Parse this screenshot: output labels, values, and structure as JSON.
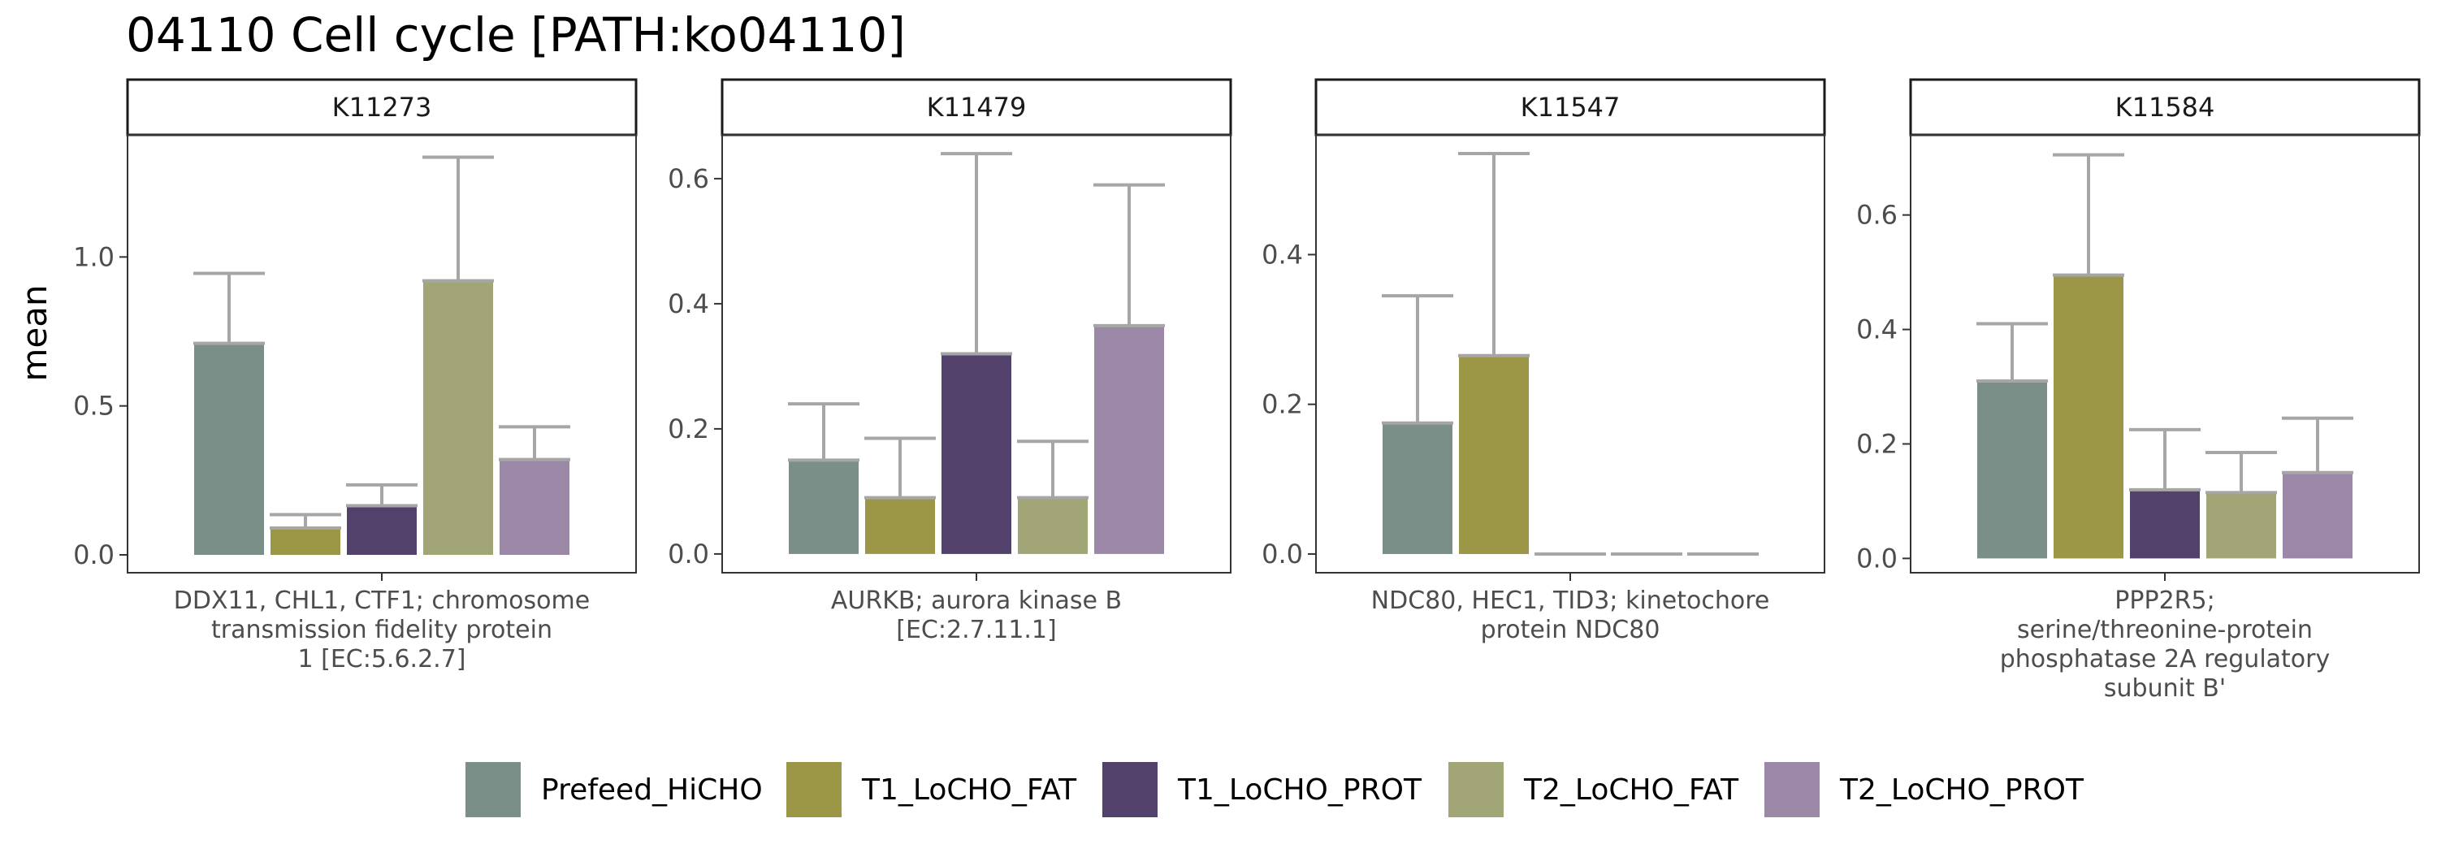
{
  "chart_data": {
    "type": "bar",
    "title": "04110 Cell cycle [PATH:ko04110]",
    "ylabel": "mean",
    "xlabel": "",
    "grid": false,
    "legend_position": "bottom",
    "series_names": [
      "Prefeed_HiCHO",
      "T1_LoCHO_FAT",
      "T1_LoCHO_PROT",
      "T2_LoCHO_FAT",
      "T2_LoCHO_PROT"
    ],
    "colors": [
      "#7a8f87",
      "#9c9647",
      "#52426b",
      "#a2a576",
      "#9b88a6"
    ],
    "error_color": "#a6a6a6",
    "panels": [
      {
        "id": "K11273",
        "description": [
          "DDX11, CHL1, CTF1; chromosome",
          "transmission fidelity protein",
          "1 [EC:5.6.2.7]"
        ],
        "ylim": [
          -0.06,
          1.41
        ],
        "yticks": [
          0.0,
          0.5,
          1.0
        ],
        "ytick_labels": [
          "0.0",
          "0.5",
          "1.0"
        ],
        "values": [
          0.71,
          0.09,
          0.165,
          0.92,
          0.32
        ],
        "errors": [
          0.945,
          0.135,
          0.235,
          1.335,
          0.43
        ]
      },
      {
        "id": "K11479",
        "description": [
          "AURKB; aurora kinase B",
          "[EC:2.7.11.1]"
        ],
        "ylim": [
          -0.03,
          0.67
        ],
        "yticks": [
          0.0,
          0.2,
          0.4,
          0.6
        ],
        "ytick_labels": [
          "0.0",
          "0.2",
          "0.4",
          "0.6"
        ],
        "values": [
          0.15,
          0.09,
          0.32,
          0.09,
          0.365
        ],
        "errors": [
          0.24,
          0.185,
          0.64,
          0.18,
          0.59
        ]
      },
      {
        "id": "K11547",
        "description": [
          "NDC80, HEC1, TID3; kinetochore",
          "protein NDC80"
        ],
        "ylim": [
          -0.025,
          0.56
        ],
        "yticks": [
          0.0,
          0.2,
          0.4
        ],
        "ytick_labels": [
          "0.0",
          "0.2",
          "0.4"
        ],
        "values": [
          0.175,
          0.265,
          0.0,
          0.0,
          0.0
        ],
        "errors": [
          0.345,
          0.535,
          0.0,
          0.0,
          0.0
        ]
      },
      {
        "id": "K11584",
        "description": [
          "PPP2R5;",
          "serine/threonine-protein",
          "phosphatase 2A regulatory",
          "subunit B'"
        ],
        "ylim": [
          -0.025,
          0.74
        ],
        "yticks": [
          0.0,
          0.2,
          0.4,
          0.6
        ],
        "ytick_labels": [
          "0.0",
          "0.2",
          "0.4",
          "0.6"
        ],
        "values": [
          0.31,
          0.495,
          0.12,
          0.115,
          0.15
        ],
        "errors": [
          0.41,
          0.705,
          0.225,
          0.185,
          0.245
        ]
      }
    ]
  }
}
